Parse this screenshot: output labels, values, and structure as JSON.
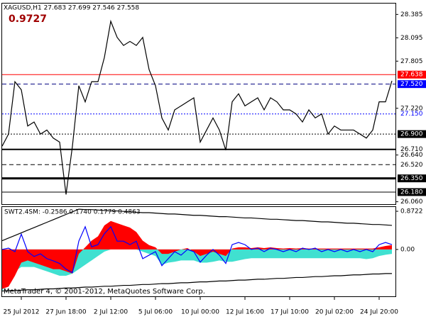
{
  "chart_data": [
    {
      "type": "line",
      "title": "XAGUSD,H1  27.683 27.699 27.546 27.558",
      "annotation": "0.9727",
      "categories": [
        null,
        null,
        null,
        "25 Jul 2012",
        null,
        null,
        null,
        null,
        null,
        null,
        "27 Jun 18:00",
        null,
        null,
        null,
        null,
        null,
        null,
        "2 Jul 12:00",
        null,
        null,
        null,
        null,
        null,
        null,
        "5 Jul 06:00",
        null,
        null,
        null,
        null,
        null,
        null,
        "10 Jul 00:00",
        null,
        null,
        null,
        null,
        null,
        null,
        "12 Jul 16:00",
        null,
        null,
        null,
        null,
        null,
        null,
        "17 Jul 10:00",
        null,
        null,
        null,
        null,
        null,
        null,
        "20 Jul 02:00",
        null,
        null,
        null,
        null,
        null,
        null,
        "24 Jul 20:00",
        null,
        null
      ],
      "series": [
        {
          "color": "#000000",
          "values": [
            26.75,
            26.9,
            27.55,
            27.45,
            27.0,
            27.05,
            26.9,
            26.95,
            26.85,
            26.8,
            26.15,
            26.75,
            27.5,
            27.3,
            27.55,
            27.55,
            27.85,
            28.3,
            28.1,
            28.0,
            28.05,
            28.0,
            28.1,
            27.7,
            27.5,
            27.1,
            26.95,
            27.2,
            27.25,
            27.3,
            27.35,
            26.8,
            26.95,
            27.1,
            26.95,
            26.7,
            27.3,
            27.4,
            27.25,
            27.3,
            27.35,
            27.2,
            27.35,
            27.3,
            27.2,
            27.2,
            27.15,
            27.05,
            27.2,
            27.1,
            27.15,
            26.9,
            27.0,
            26.95,
            26.95,
            26.95,
            26.9,
            26.85,
            26.95,
            27.3,
            27.3,
            27.56
          ]
        }
      ],
      "ylim": [
        26.03,
        28.52
      ],
      "yticks": [
        28.385,
        28.095,
        27.805,
        {
          "value": 27.22,
          "label": "27.220"
        },
        {
          "value": 26.64,
          "label": "26.640"
        },
        {
          "value": 26.06,
          "label": "26.060"
        }
      ],
      "levels": [
        {
          "value": 27.638,
          "label": "27.638",
          "color": "#ff0000",
          "style": "solid",
          "width": 1,
          "box": "#ff0000"
        },
        {
          "value": 27.52,
          "label": "27.520",
          "color": "#000080",
          "style": "dashed",
          "width": 1,
          "box": "#0000ff"
        },
        {
          "value": 27.15,
          "label": "27.150",
          "color": "#0000ff",
          "style": "dotted",
          "width": 1
        },
        {
          "value": 26.9,
          "label": "26.900",
          "color": "#000000",
          "style": "dotted",
          "width": 1,
          "box": "#000000"
        },
        {
          "value": 26.71,
          "label": "26.710",
          "color": "#000000",
          "style": "solid",
          "width": 2
        },
        {
          "value": 26.52,
          "label": "26.520",
          "color": "#000000",
          "style": "dashed",
          "width": 1
        },
        {
          "value": 26.35,
          "label": "26.350",
          "color": "#000000",
          "style": "solid",
          "width": 3,
          "box": "#000000"
        },
        {
          "value": 26.18,
          "label": "26.180",
          "color": "#000000",
          "style": "solid",
          "width": 1,
          "box": "#000000"
        }
      ]
    },
    {
      "type": "area",
      "title": "SWT2.4SM: -0.2586 0.1740 0.1779 0.4863",
      "ylim": [
        -1.07,
        0.97
      ],
      "yticks": [
        0.8722,
        {
          "value": 0,
          "label": "0.00"
        }
      ],
      "series": [
        {
          "kind": "area",
          "color": "#40e0d0",
          "values": [
            -0.95,
            -0.7,
            -0.5,
            -0.4,
            -0.4,
            -0.4,
            -0.45,
            -0.5,
            -0.55,
            -0.6,
            -0.6,
            -0.55,
            -0.45,
            -0.35,
            -0.25,
            -0.15,
            -0.05,
            0,
            0,
            0,
            0,
            0,
            -0.05,
            -0.1,
            -0.15,
            -0.35,
            -0.3,
            -0.28,
            -0.25,
            -0.25,
            -0.25,
            -0.3,
            -0.3,
            -0.28,
            -0.25,
            -0.28,
            -0.28,
            -0.25,
            -0.22,
            -0.2,
            -0.2,
            -0.2,
            -0.2,
            -0.2,
            -0.2,
            -0.2,
            -0.2,
            -0.2,
            -0.2,
            -0.2,
            -0.2,
            -0.2,
            -0.2,
            -0.2,
            -0.2,
            -0.2,
            -0.2,
            -0.22,
            -0.2,
            -0.15,
            -0.12,
            -0.1
          ]
        },
        {
          "kind": "area",
          "color": "#ff0000",
          "values": [
            -0.9,
            -0.85,
            -0.6,
            -0.3,
            -0.25,
            -0.3,
            -0.35,
            -0.4,
            -0.45,
            -0.45,
            -0.5,
            -0.55,
            -0.1,
            0.05,
            0.2,
            0.3,
            0.55,
            0.65,
            0.6,
            0.55,
            0.5,
            0.4,
            0.2,
            0.1,
            0.05,
            -0.1,
            -0.1,
            -0.05,
            0,
            0.03,
            -0.05,
            -0.15,
            -0.1,
            -0.05,
            -0.1,
            -0.15,
            0.02,
            0.05,
            0.05,
            0.03,
            0.05,
            0.03,
            0.05,
            0.03,
            0.02,
            0.03,
            0.02,
            0.03,
            0.02,
            0.02,
            0.02,
            0.02,
            0.02,
            0.02,
            0.02,
            0.02,
            0.02,
            0.02,
            0.02,
            0.05,
            0.08,
            0.1
          ]
        },
        {
          "kind": "line",
          "color": "#0000ff",
          "values": [
            0,
            0.03,
            -0.05,
            0.35,
            -0.05,
            -0.16,
            -0.1,
            -0.21,
            -0.26,
            -0.32,
            -0.45,
            -0.53,
            0.19,
            0.52,
            0.06,
            0.11,
            0.36,
            0.52,
            0.19,
            0.19,
            0.11,
            0.19,
            -0.21,
            -0.13,
            -0.05,
            -0.37,
            -0.21,
            -0.05,
            -0.13,
            0,
            -0.05,
            -0.29,
            -0.13,
            0,
            -0.13,
            -0.32,
            0.11,
            0.16,
            0.11,
            0,
            0.03,
            -0.05,
            0.03,
            0,
            -0.05,
            0,
            -0.05,
            0.03,
            0,
            0.03,
            -0.05,
            0,
            -0.05,
            0,
            -0.05,
            0,
            -0.05,
            0,
            -0.05,
            0.11,
            0.16,
            0.11
          ]
        },
        {
          "kind": "line",
          "color": "#000000",
          "values": [
            0.2,
            0.26,
            0.32,
            0.38,
            0.44,
            0.5,
            0.56,
            0.62,
            0.68,
            0.74,
            0.8,
            0.86,
            0.92,
            0.91,
            0.91,
            0.9,
            0.89,
            0.88,
            0.88,
            0.87,
            0.86,
            0.85,
            0.84,
            0.84,
            0.83,
            0.82,
            0.81,
            0.81,
            0.8,
            0.79,
            0.78,
            0.78,
            0.77,
            0.76,
            0.75,
            0.75,
            0.74,
            0.73,
            0.72,
            0.72,
            0.71,
            0.7,
            0.69,
            0.69,
            0.68,
            0.67,
            0.66,
            0.66,
            0.65,
            0.64,
            0.63,
            0.63,
            0.62,
            0.61,
            0.6,
            0.6,
            0.59,
            0.58,
            0.57,
            0.57,
            0.56,
            0.55
          ]
        },
        {
          "kind": "line",
          "color": "#000000",
          "values": [
            -0.95,
            -0.94,
            -0.94,
            -0.93,
            -0.92,
            -0.92,
            -0.91,
            -0.9,
            -0.9,
            -0.89,
            -0.88,
            -0.88,
            -0.87,
            -0.86,
            -0.86,
            -0.85,
            -0.84,
            -0.84,
            -0.83,
            -0.82,
            -0.82,
            -0.81,
            -0.8,
            -0.8,
            -0.79,
            -0.78,
            -0.78,
            -0.77,
            -0.76,
            -0.76,
            -0.75,
            -0.74,
            -0.74,
            -0.73,
            -0.72,
            -0.72,
            -0.71,
            -0.7,
            -0.7,
            -0.69,
            -0.68,
            -0.68,
            -0.67,
            -0.66,
            -0.66,
            -0.65,
            -0.64,
            -0.64,
            -0.63,
            -0.62,
            -0.62,
            -0.61,
            -0.6,
            -0.6,
            -0.59,
            -0.58,
            -0.58,
            -0.57,
            -0.56,
            -0.56,
            -0.55,
            -0.55
          ]
        }
      ]
    }
  ],
  "watermark": "MetaTrader 4, © 2001-2012, MetaQuotes Software Corp."
}
